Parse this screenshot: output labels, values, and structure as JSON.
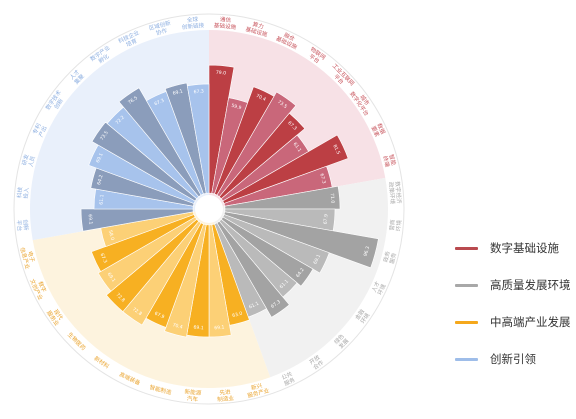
{
  "chart_data": {
    "type": "bar",
    "coordinate": "polar",
    "rlim": [
      0,
      100
    ],
    "grid": false,
    "legend_position": "right",
    "series": [
      {
        "name": "数字基础设施",
        "color": "#b94a4f",
        "bar_colors": [
          "#bc3f44",
          "#c9677a"
        ],
        "background": "#f7e1e6",
        "label_color": "#c95860",
        "categories": [
          [
            "通信",
            "基础设施"
          ],
          [
            "算力",
            "基础设施"
          ],
          [
            "融合",
            "基础设施"
          ],
          [
            "物联网",
            "平台"
          ],
          [
            "工业互联网",
            "平台"
          ],
          [
            "城市",
            "数字化平台"
          ],
          [
            "数据",
            "要素"
          ],
          [
            "智能",
            "终端"
          ]
        ],
        "values": [
          79.0,
          59.9,
          70.4,
          73.5,
          67.3,
          61.1,
          81.5,
          67.3
        ]
      },
      {
        "name": "高质量发展环境",
        "color": "#a8a8a8",
        "bar_colors": [
          "#a3a3a3",
          "#bababa"
        ],
        "background": "#f1f1f1",
        "label_color": "#a9a9a9",
        "categories": [
          [
            "数字经济",
            "政策环境"
          ],
          [
            "营商",
            "环境"
          ],
          [
            "政务",
            "服务"
          ],
          [
            "人才",
            "环境"
          ],
          [
            "金融",
            "环境"
          ],
          [
            "绿色",
            "发展"
          ],
          [
            "开放",
            "合作"
          ],
          [
            "公共",
            "服务"
          ]
        ],
        "values": [
          71.0,
          67.9,
          96.3,
          69.1,
          64.2,
          61.1,
          67.3,
          61.1
        ]
      },
      {
        "name": "中高端产业发展",
        "color": "#f5a81c",
        "bar_colors": [
          "#f7b022",
          "#fcd076"
        ],
        "background": "#fdf3de",
        "label_color": "#eaa531",
        "categories": [
          [
            "新兴",
            "服务产业"
          ],
          [
            "先进",
            "制造业"
          ],
          [
            "新能源",
            "汽车"
          ],
          [
            "智能制造"
          ],
          [
            "高端装备"
          ],
          [
            "新材料"
          ],
          [
            "生物医药"
          ],
          [
            "现代",
            "服务业"
          ],
          [
            "数字",
            "文创产业"
          ],
          [
            "电子",
            "信息产业"
          ]
        ],
        "values": [
          63.0,
          69.1,
          69.1,
          70.4,
          67.9,
          72.8,
          72.8,
          69.1,
          67.3,
          58.0
        ]
      },
      {
        "name": "创新引领",
        "color": "#9ebde9",
        "bar_colors": [
          "#8b9dbb",
          "#a7c3ec"
        ],
        "background": "#e9f0fb",
        "label_color": "#8fb0e1",
        "categories": [
          [
            "创新",
            "平台"
          ],
          [
            "科技",
            "投入"
          ],
          [
            "研发",
            "人员"
          ],
          [
            "专利",
            "产出"
          ],
          [
            "数字技术",
            "创新"
          ],
          [
            "人才",
            "集聚"
          ],
          [
            "数字产业",
            "孵化"
          ],
          [
            "科技企业",
            "培育"
          ],
          [
            "区域创新",
            "协作"
          ],
          [
            "全球",
            "创新链接"
          ]
        ],
        "values": [
          69.1,
          61.1,
          64.2,
          69.1,
          73.5,
          72.2,
          76.5,
          67.3,
          69.1,
          67.3
        ]
      }
    ]
  }
}
